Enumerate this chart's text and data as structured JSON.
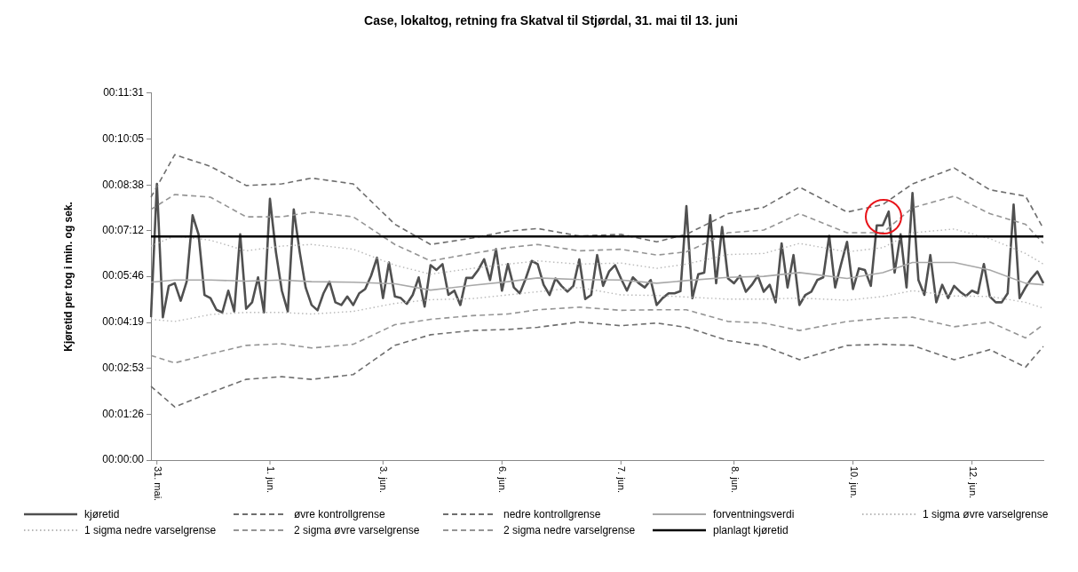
{
  "chart_data": {
    "type": "line",
    "title": "Case, lokaltog, retning fra Skatval til Stjørdal, 31. mai til 13. juni",
    "ylabel": "Kjøretid per tog i min. og sek.",
    "categories": [
      null,
      "31. mai.",
      null,
      null,
      null,
      null,
      null,
      null,
      null,
      null,
      null,
      null,
      null,
      null,
      null,
      null,
      null,
      null,
      null,
      null,
      "1. jun.",
      null,
      null,
      null,
      null,
      null,
      null,
      null,
      null,
      null,
      null,
      null,
      null,
      null,
      null,
      null,
      null,
      null,
      null,
      "3. jun.",
      null,
      null,
      null,
      null,
      null,
      null,
      null,
      null,
      null,
      null,
      null,
      null,
      null,
      null,
      null,
      null,
      null,
      null,
      null,
      "6. jun.",
      null,
      null,
      null,
      null,
      null,
      null,
      null,
      null,
      null,
      null,
      null,
      null,
      null,
      null,
      null,
      null,
      null,
      null,
      null,
      "7. jun.",
      null,
      null,
      null,
      null,
      null,
      null,
      null,
      null,
      null,
      null,
      null,
      null,
      null,
      null,
      null,
      null,
      null,
      null,
      "8. jun.",
      null,
      null,
      null,
      null,
      null,
      null,
      null,
      null,
      null,
      null,
      null,
      null,
      null,
      null,
      null,
      null,
      null,
      null,
      null,
      "10. jun.",
      null,
      null,
      null,
      null,
      null,
      null,
      null,
      null,
      null,
      null,
      null,
      null,
      null,
      null,
      null,
      null,
      null,
      null,
      null,
      "12. jun.",
      null,
      null,
      null,
      null,
      null,
      null,
      null,
      null,
      null,
      null,
      null,
      null
    ],
    "ylim": [
      0,
      691
    ],
    "yticks": [
      {
        "value": 0,
        "label": "00:00:00"
      },
      {
        "value": 86,
        "label": "00:01:26"
      },
      {
        "value": 173,
        "label": "00:02:53"
      },
      {
        "value": 259,
        "label": "00:04:19"
      },
      {
        "value": 346,
        "label": "00:05:46"
      },
      {
        "value": 432,
        "label": "00:07:12"
      },
      {
        "value": 518,
        "label": "00:08:38"
      },
      {
        "value": 605,
        "label": "00:10:05"
      },
      {
        "value": 691,
        "label": "00:11:31"
      }
    ],
    "grid": false,
    "legend": "bottom",
    "marker": "none",
    "ref_lines": [
      {
        "axis": "y",
        "value": 421,
        "label": "planlagt kjøretid",
        "color": "#000000",
        "line_style": "solid"
      }
    ],
    "series": [
      {
        "name": "kjøretid",
        "color": "#505050",
        "line_style": "solid",
        "values": [
          269,
          520,
          269,
          328,
          333,
          300,
          336,
          461,
          425,
          311,
          305,
          283,
          278,
          319,
          280,
          425,
          285,
          297,
          344,
          278,
          492,
          392,
          319,
          280,
          472,
          392,
          325,
          292,
          282,
          314,
          336,
          297,
          292,
          308,
          292,
          314,
          322,
          347,
          381,
          305,
          372,
          308,
          305,
          294,
          311,
          344,
          289,
          367,
          358,
          369,
          311,
          319,
          292,
          343,
          343,
          358,
          378,
          339,
          397,
          319,
          369,
          325,
          314,
          342,
          375,
          369,
          330,
          311,
          342,
          328,
          317,
          328,
          378,
          303,
          311,
          386,
          328,
          355,
          367,
          342,
          319,
          344,
          333,
          325,
          339,
          292,
          305,
          314,
          314,
          318,
          478,
          305,
          350,
          353,
          461,
          333,
          439,
          342,
          333,
          347,
          317,
          330,
          347,
          317,
          330,
          297,
          408,
          325,
          386,
          292,
          311,
          317,
          339,
          344,
          422,
          325,
          369,
          411,
          322,
          361,
          358,
          328,
          442,
          442,
          468,
          353,
          425,
          325,
          503,
          339,
          311,
          386,
          297,
          330,
          305,
          328,
          317,
          309,
          319,
          314,
          369,
          308,
          297,
          297,
          314,
          481,
          305,
          325,
          342,
          355,
          333
        ]
      },
      {
        "name": "øvre kontrollgrense",
        "color": "#6e6e6e",
        "line_style": "dashed",
        "values": [
          495,
          null,
          null,
          null,
          575,
          null,
          null,
          null,
          null,
          null,
          553,
          null,
          null,
          null,
          null,
          null,
          517,
          null,
          null,
          null,
          null,
          null,
          520,
          null,
          null,
          null,
          null,
          531,
          null,
          null,
          null,
          null,
          null,
          null,
          520,
          null,
          null,
          null,
          null,
          null,
          null,
          444,
          null,
          null,
          null,
          null,
          null,
          406,
          null,
          null,
          null,
          null,
          null,
          null,
          418,
          null,
          null,
          null,
          null,
          null,
          431,
          null,
          null,
          null,
          null,
          436,
          null,
          null,
          null,
          null,
          null,
          null,
          422,
          null,
          null,
          null,
          null,
          null,
          null,
          425,
          null,
          null,
          null,
          null,
          null,
          411,
          null,
          null,
          null,
          null,
          425,
          null,
          null,
          null,
          null,
          null,
          null,
          464,
          null,
          null,
          null,
          null,
          null,
          476,
          null,
          null,
          null,
          null,
          null,
          514,
          null,
          null,
          null,
          null,
          null,
          null,
          null,
          467,
          null,
          null,
          null,
          null,
          null,
          481,
          null,
          null,
          null,
          null,
          520,
          null,
          null,
          null,
          null,
          null,
          null,
          550,
          null,
          null,
          null,
          null,
          null,
          509,
          null,
          null,
          null,
          null,
          null,
          497,
          null,
          null,
          436
        ]
      },
      {
        "name": "nedre kontrollgrense",
        "color": "#6e6e6e",
        "line_style": "dashed",
        "values": [
          139,
          null,
          null,
          null,
          100,
          null,
          null,
          null,
          null,
          null,
          127,
          null,
          null,
          null,
          null,
          null,
          152,
          null,
          null,
          null,
          null,
          null,
          157,
          null,
          null,
          null,
          null,
          152,
          null,
          null,
          null,
          null,
          null,
          null,
          161,
          null,
          null,
          null,
          null,
          null,
          null,
          216,
          null,
          null,
          null,
          null,
          null,
          236,
          null,
          null,
          null,
          null,
          null,
          null,
          244,
          null,
          null,
          null,
          null,
          null,
          246,
          null,
          null,
          null,
          null,
          250,
          null,
          null,
          null,
          null,
          null,
          null,
          260,
          null,
          null,
          null,
          null,
          null,
          null,
          253,
          null,
          null,
          null,
          null,
          null,
          258,
          null,
          null,
          null,
          null,
          250,
          null,
          null,
          null,
          null,
          null,
          null,
          225,
          null,
          null,
          null,
          null,
          null,
          215,
          null,
          null,
          null,
          null,
          null,
          189,
          null,
          null,
          null,
          null,
          null,
          null,
          null,
          216,
          null,
          null,
          null,
          null,
          null,
          218,
          null,
          null,
          null,
          null,
          216,
          null,
          null,
          null,
          null,
          null,
          null,
          189,
          null,
          null,
          null,
          null,
          null,
          208,
          null,
          null,
          null,
          null,
          null,
          175,
          null,
          null,
          214
        ]
      },
      {
        "name": "forventningsverdi",
        "color": "#a8a8a8",
        "line_style": "solid",
        "values": [
          335,
          null,
          null,
          null,
          339,
          null,
          null,
          null,
          null,
          null,
          339,
          null,
          null,
          null,
          null,
          null,
          337,
          null,
          null,
          null,
          null,
          null,
          339,
          null,
          null,
          null,
          null,
          336,
          null,
          null,
          null,
          null,
          null,
          null,
          335,
          null,
          null,
          null,
          null,
          null,
          null,
          332,
          null,
          null,
          null,
          null,
          null,
          320,
          null,
          null,
          null,
          null,
          null,
          null,
          329,
          null,
          null,
          null,
          null,
          null,
          336,
          null,
          null,
          null,
          null,
          343,
          null,
          null,
          null,
          null,
          null,
          null,
          340,
          null,
          null,
          null,
          null,
          null,
          null,
          339,
          null,
          null,
          null,
          null,
          null,
          333,
          null,
          null,
          null,
          null,
          338,
          null,
          null,
          null,
          null,
          null,
          null,
          344,
          null,
          null,
          null,
          null,
          null,
          346,
          null,
          null,
          null,
          null,
          null,
          353,
          null,
          null,
          null,
          null,
          null,
          null,
          null,
          342,
          null,
          null,
          null,
          null,
          null,
          353,
          null,
          null,
          null,
          null,
          372,
          null,
          null,
          null,
          null,
          null,
          null,
          372,
          null,
          null,
          null,
          null,
          null,
          358,
          null,
          null,
          null,
          null,
          null,
          333,
          null,
          null,
          330
        ]
      },
      {
        "name": "1 sigma øvre varselgrense",
        "color": "#b8b8b8",
        "line_style": "dotted",
        "values": [
          403,
          null,
          null,
          null,
          422,
          null,
          null,
          null,
          null,
          null,
          414,
          null,
          null,
          null,
          null,
          null,
          394,
          null,
          null,
          null,
          null,
          null,
          403,
          null,
          null,
          null,
          null,
          406,
          null,
          null,
          null,
          null,
          null,
          null,
          397,
          null,
          null,
          null,
          null,
          null,
          null,
          367,
          null,
          null,
          null,
          null,
          null,
          350,
          null,
          null,
          null,
          null,
          null,
          null,
          361,
          null,
          null,
          null,
          null,
          null,
          369,
          null,
          null,
          null,
          null,
          375,
          null,
          null,
          null,
          null,
          null,
          null,
          369,
          null,
          null,
          null,
          null,
          null,
          null,
          371,
          null,
          null,
          null,
          null,
          null,
          361,
          null,
          null,
          null,
          null,
          369,
          null,
          null,
          null,
          null,
          null,
          null,
          387,
          null,
          null,
          null,
          null,
          null,
          389,
          null,
          null,
          null,
          null,
          null,
          408,
          null,
          null,
          null,
          null,
          null,
          null,
          null,
          392,
          null,
          null,
          null,
          null,
          null,
          400,
          null,
          null,
          null,
          null,
          428,
          null,
          null,
          null,
          null,
          null,
          null,
          435,
          null,
          null,
          null,
          null,
          null,
          417,
          null,
          null,
          null,
          null,
          null,
          389,
          null,
          null,
          369
        ]
      },
      {
        "name": "1 sigma nedre varselgrense",
        "color": "#b8b8b8",
        "line_style": "dotted",
        "values": [
          265,
          null,
          null,
          null,
          261,
          null,
          null,
          null,
          null,
          null,
          274,
          null,
          null,
          null,
          null,
          null,
          278,
          null,
          null,
          null,
          null,
          null,
          278,
          null,
          null,
          null,
          null,
          275,
          null,
          null,
          null,
          null,
          null,
          null,
          280,
          null,
          null,
          null,
          null,
          null,
          null,
          295,
          null,
          null,
          null,
          null,
          null,
          302,
          null,
          null,
          null,
          null,
          null,
          null,
          304,
          null,
          null,
          null,
          null,
          null,
          311,
          null,
          null,
          null,
          null,
          317,
          null,
          null,
          null,
          null,
          null,
          null,
          325,
          null,
          null,
          null,
          null,
          null,
          null,
          311,
          null,
          null,
          null,
          null,
          null,
          310,
          null,
          null,
          null,
          null,
          307,
          null,
          null,
          null,
          null,
          null,
          null,
          303,
          null,
          null,
          null,
          null,
          null,
          303,
          null,
          null,
          null,
          null,
          null,
          305,
          null,
          null,
          null,
          null,
          null,
          null,
          null,
          301,
          null,
          null,
          null,
          null,
          null,
          308,
          null,
          null,
          null,
          null,
          319,
          null,
          null,
          null,
          null,
          null,
          null,
          309,
          null,
          null,
          null,
          null,
          null,
          308,
          null,
          null,
          null,
          null,
          null,
          297,
          null,
          null,
          286
        ]
      },
      {
        "name": "2 sigma øvre varselgrense",
        "color": "#959595",
        "line_style": "dashed",
        "values": [
          472,
          null,
          null,
          null,
          500,
          null,
          null,
          null,
          null,
          null,
          495,
          null,
          null,
          null,
          null,
          null,
          458,
          null,
          null,
          null,
          null,
          null,
          458,
          null,
          null,
          null,
          null,
          467,
          null,
          null,
          null,
          null,
          null,
          null,
          458,
          null,
          null,
          null,
          null,
          null,
          null,
          406,
          null,
          null,
          null,
          null,
          null,
          375,
          null,
          null,
          null,
          null,
          null,
          null,
          389,
          null,
          null,
          null,
          null,
          null,
          400,
          null,
          null,
          null,
          null,
          406,
          null,
          null,
          null,
          null,
          null,
          null,
          394,
          null,
          null,
          null,
          null,
          null,
          null,
          397,
          null,
          null,
          null,
          null,
          null,
          386,
          null,
          null,
          null,
          null,
          392,
          null,
          null,
          null,
          null,
          null,
          null,
          428,
          null,
          null,
          null,
          null,
          null,
          433,
          null,
          null,
          null,
          null,
          null,
          464,
          null,
          null,
          null,
          null,
          null,
          null,
          null,
          428,
          null,
          null,
          null,
          null,
          null,
          428,
          null,
          null,
          null,
          null,
          475,
          null,
          null,
          null,
          null,
          null,
          null,
          497,
          null,
          null,
          null,
          null,
          null,
          464,
          null,
          null,
          null,
          null,
          null,
          444,
          null,
          null,
          408
        ]
      },
      {
        "name": "2 sigma nedre varselgrense",
        "color": "#959595",
        "line_style": "dashed",
        "values": [
          197,
          null,
          null,
          null,
          183,
          null,
          null,
          null,
          null,
          null,
          200,
          null,
          null,
          null,
          null,
          null,
          216,
          null,
          null,
          null,
          null,
          null,
          219,
          null,
          null,
          null,
          null,
          211,
          null,
          null,
          null,
          null,
          null,
          null,
          218,
          null,
          null,
          null,
          null,
          null,
          null,
          255,
          null,
          null,
          null,
          null,
          null,
          265,
          null,
          null,
          null,
          null,
          null,
          null,
          272,
          null,
          null,
          null,
          null,
          null,
          275,
          null,
          null,
          null,
          null,
          283,
          null,
          null,
          null,
          null,
          null,
          null,
          288,
          null,
          null,
          null,
          null,
          null,
          null,
          282,
          null,
          null,
          null,
          null,
          null,
          283,
          null,
          null,
          null,
          null,
          283,
          null,
          null,
          null,
          null,
          null,
          null,
          261,
          null,
          null,
          null,
          null,
          null,
          258,
          null,
          null,
          null,
          null,
          null,
          244,
          null,
          null,
          null,
          null,
          null,
          null,
          null,
          261,
          null,
          null,
          null,
          null,
          null,
          267,
          null,
          null,
          null,
          null,
          269,
          null,
          null,
          null,
          null,
          null,
          null,
          251,
          null,
          null,
          null,
          null,
          null,
          260,
          null,
          null,
          null,
          null,
          null,
          230,
          null,
          null,
          255
        ]
      }
    ]
  }
}
